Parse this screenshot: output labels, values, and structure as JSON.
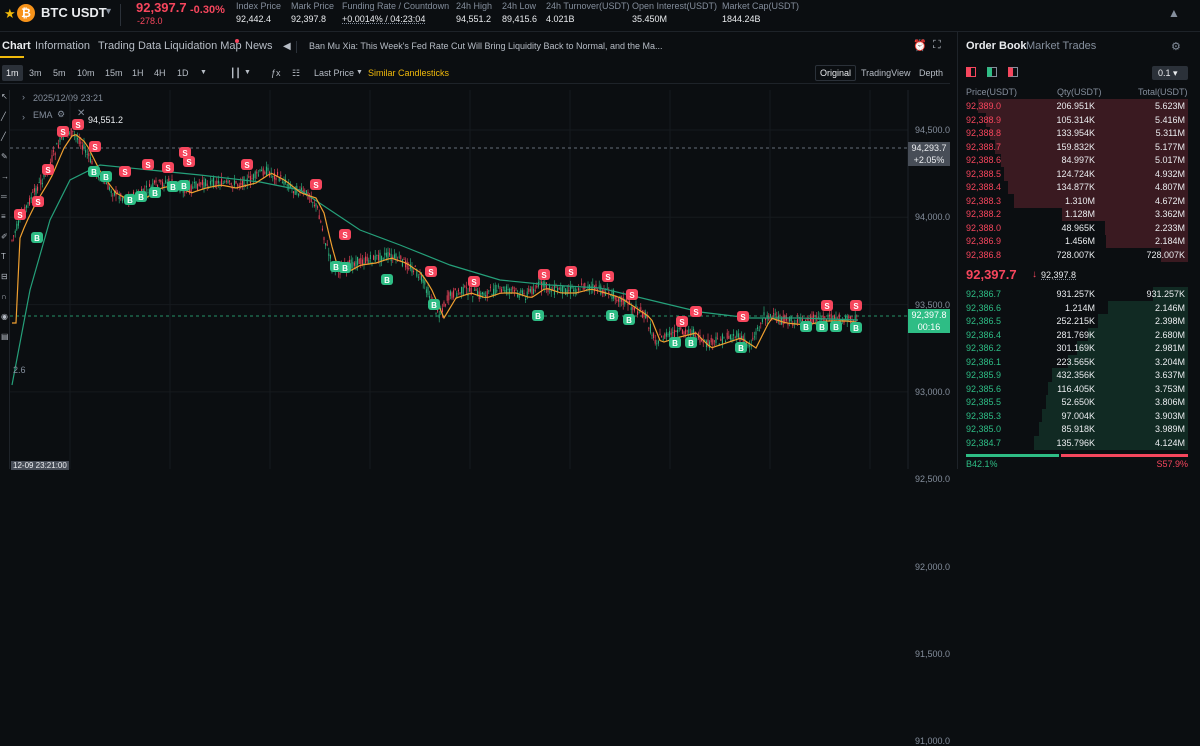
{
  "header": {
    "pair": "BTC USDT",
    "last_price": "92,397.7",
    "change_abs": "-278.0",
    "change_pct": "-0.30%",
    "stats": [
      {
        "label": "Index Price",
        "value": "92,442.4"
      },
      {
        "label": "Mark Price",
        "value": "92,397.8"
      },
      {
        "label": "Funding Rate  /  Countdown",
        "value": "+0.0014%  /  04:23:04"
      },
      {
        "label": "24h High",
        "value": "94,551.2"
      },
      {
        "label": "24h Low",
        "value": "89,415.6"
      },
      {
        "label": "24h Turnover(USDT)",
        "value": "4.021B"
      },
      {
        "label": "Open Interest(USDT)",
        "value": "35.450M"
      },
      {
        "label": "Market Cap(USDT)",
        "value": "1844.24B"
      }
    ]
  },
  "tabs": [
    "Chart",
    "Information",
    "Trading Data",
    "Liquidation Map",
    "News"
  ],
  "news_text": "Ban Mu Xia: This Week's Fed Rate Cut Will Bring Liquidity Back to Normal, and the Ma...",
  "toolbar": {
    "intervals": [
      "1m",
      "3m",
      "5m",
      "10m",
      "15m",
      "1H",
      "4H",
      "1D"
    ],
    "price_type": "Last Price",
    "similar": "Similar Candlesticks",
    "views": [
      "Original",
      "TradingView",
      "Depth"
    ]
  },
  "chart": {
    "timestamp": "2025/12/09 23:21",
    "indicator": "EMA",
    "high_label": "94,551.2",
    "low_label": "2.6",
    "y_ticks": [
      "94,500.0",
      "94,000.0",
      "93,500.0",
      "93,000.0",
      "92,500.0",
      "92,000.0",
      "91,500.0",
      "91,000.0"
    ],
    "marker_high_price": "94,293.7",
    "marker_high_pct": "+2.05%",
    "marker_last_price": "92,397.8",
    "marker_last_time": "00:16",
    "bottom_time": "12-09 23:21:00",
    "buy_label": "B",
    "sell_label": "S",
    "colors": {
      "up": "#2ebd85",
      "down": "#f6465d",
      "ema_fast": "#f0a030",
      "ema_slow": "#25a07a"
    }
  },
  "orderbook": {
    "tabs": [
      "Order Book",
      "Market Trades"
    ],
    "precision": "0.1",
    "headers": [
      "Price(USDT)",
      "Qty(USDT)",
      "Total(USDT)"
    ],
    "asks": [
      [
        "92,389.0",
        "206.951K",
        "5.623M"
      ],
      [
        "92,388.9",
        "105.314K",
        "5.416M"
      ],
      [
        "92,388.8",
        "133.954K",
        "5.311M"
      ],
      [
        "92,388.7",
        "159.832K",
        "5.177M"
      ],
      [
        "92,388.6",
        "84.997K",
        "5.017M"
      ],
      [
        "92,388.5",
        "124.724K",
        "4.932M"
      ],
      [
        "92,388.4",
        "134.877K",
        "4.807M"
      ],
      [
        "92,388.3",
        "1.310M",
        "4.672M"
      ],
      [
        "92,388.2",
        "1.128M",
        "3.362M"
      ],
      [
        "92,388.0",
        "48.965K",
        "2.233M"
      ],
      [
        "92,386.9",
        "1.456M",
        "2.184M"
      ],
      [
        "92,386.8",
        "728.007K",
        "728.007K"
      ]
    ],
    "mid_price": "92,397.7",
    "mid_mark": "92,397.8",
    "bids": [
      [
        "92,386.7",
        "931.257K",
        "931.257K"
      ],
      [
        "92,386.6",
        "1.214M",
        "2.146M"
      ],
      [
        "92,386.5",
        "252.215K",
        "2.398M"
      ],
      [
        "92,386.4",
        "281.769K",
        "2.680M"
      ],
      [
        "92,386.2",
        "301.169K",
        "2.981M"
      ],
      [
        "92,386.1",
        "223.565K",
        "3.204M"
      ],
      [
        "92,385.9",
        "432.356K",
        "3.637M"
      ],
      [
        "92,385.6",
        "116.405K",
        "3.753M"
      ],
      [
        "92,385.5",
        "52.650K",
        "3.806M"
      ],
      [
        "92,385.3",
        "97.004K",
        "3.903M"
      ],
      [
        "92,385.0",
        "85.918K",
        "3.989M"
      ],
      [
        "92,384.7",
        "135.796K",
        "4.124M"
      ]
    ],
    "buy_ratio": "B42.1%",
    "sell_ratio": "S57.9%"
  }
}
